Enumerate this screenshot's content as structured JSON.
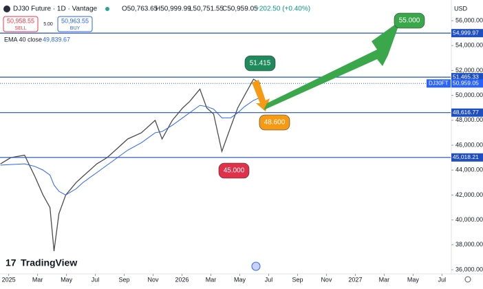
{
  "header": {
    "title": "DJ30 Future · 1D · Vantage",
    "ohlc": [
      "O50,763.65",
      "H50,999.99",
      "L50,751.55",
      "C50,959.05"
    ],
    "change": "+202.50 (+0.40%)",
    "sell_price": "50,958.55",
    "sell": "SELL",
    "spread": "5.00",
    "buy_price": "50,963.55",
    "buy": "BUY",
    "indicator": "EMA 40 close",
    "indicator_value": "49,839.67",
    "currency": "USD",
    "watermark": "TradingView"
  },
  "chart_data": {
    "type": "line",
    "x": [
      -0.57,
      0.14,
      1.1,
      1.81,
      2.38,
      2.86,
      3.14,
      3.48,
      3.95,
      4.67,
      5.14,
      6.1,
      6.81,
      7.29,
      8.24,
      9.19,
      10.14,
      10.62,
      11.33,
      12.05,
      12.52,
      13.24,
      13.71,
      14.19,
      14.76,
      15.38,
      15.86,
      16.33,
      16.95,
      17.43
    ],
    "series": [
      {
        "name": "DJ30FT",
        "color": "#4a4a4a",
        "values": [
          44500,
          45000,
          45200,
          43500,
          42000,
          41000,
          37500,
          40500,
          42000,
          43000,
          43500,
          44500,
          45000,
          45500,
          46500,
          47000,
          48000,
          46500,
          48000,
          49000,
          49500,
          50500,
          49000,
          48500,
          45500,
          47500,
          49000,
          50000,
          51300,
          50959.05
        ]
      },
      {
        "name": "EMA 40 close",
        "color": "#2962ff",
        "values": [
          44400,
          44450,
          44500,
          44300,
          44000,
          43600,
          42800,
          42300,
          42000,
          42500,
          43000,
          43800,
          44400,
          44800,
          45600,
          46200,
          47000,
          47100,
          47600,
          48200,
          48600,
          49200,
          49100,
          48900,
          48200,
          48200,
          48600,
          49100,
          49600,
          49839.67
        ]
      }
    ],
    "xlim": [
      -0.6,
      30.6
    ],
    "xticks": [
      {
        "value": 0,
        "label": "2025"
      },
      {
        "value": 2,
        "label": "Mar"
      },
      {
        "value": 4,
        "label": "May"
      },
      {
        "value": 6,
        "label": "Jul"
      },
      {
        "value": 8,
        "label": "Sep"
      },
      {
        "value": 10,
        "label": "Nov"
      },
      {
        "value": 12,
        "label": "2026"
      },
      {
        "value": 14,
        "label": "Mar"
      },
      {
        "value": 16,
        "label": "May"
      },
      {
        "value": 18,
        "label": "Jul"
      },
      {
        "value": 20,
        "label": "Sep"
      },
      {
        "value": 22,
        "label": "Nov"
      },
      {
        "value": 24,
        "label": "2027"
      },
      {
        "value": 26,
        "label": "Mar"
      },
      {
        "value": 28,
        "label": "May"
      },
      {
        "value": 30,
        "label": "Jul"
      }
    ],
    "ylim": [
      35670,
      57660
    ],
    "yticks": [
      {
        "value": 36000,
        "label": "36,000.00"
      },
      {
        "value": 38000,
        "label": "38,000.00"
      },
      {
        "value": 40000,
        "label": "40,000.00"
      },
      {
        "value": 42000,
        "label": "42,000.00"
      },
      {
        "value": 44000,
        "label": "44,000.00"
      },
      {
        "value": 46000,
        "label": "46,000.00"
      },
      {
        "value": 48000,
        "label": "48,000.00"
      },
      {
        "value": 50000,
        "label": "50,000.00"
      },
      {
        "value": 52000,
        "label": "52,000.00"
      },
      {
        "value": 54000,
        "label": "54,000.00"
      },
      {
        "value": 56000,
        "label": "56,000.00"
      }
    ],
    "levels": [
      {
        "value": 54999.97,
        "label": "54,999.97"
      },
      {
        "value": 51465.33,
        "label": "51,465.33"
      },
      {
        "value": 48616.77,
        "label": "48,616.77"
      },
      {
        "value": 45018.21,
        "label": "45,018.21"
      }
    ],
    "last_price": {
      "value": 50959.05,
      "label": "50,959.05"
    },
    "annotations": [
      {
        "value": 51415,
        "label": "51.415",
        "color": "#1f8a5b"
      },
      {
        "value": 48600,
        "label": "48.600",
        "color": "#f59a12"
      },
      {
        "value": 45000,
        "label": "45.000",
        "color": "#e0304a"
      },
      {
        "value": 55000,
        "label": "55.000",
        "color": "#3aa84a"
      }
    ]
  }
}
